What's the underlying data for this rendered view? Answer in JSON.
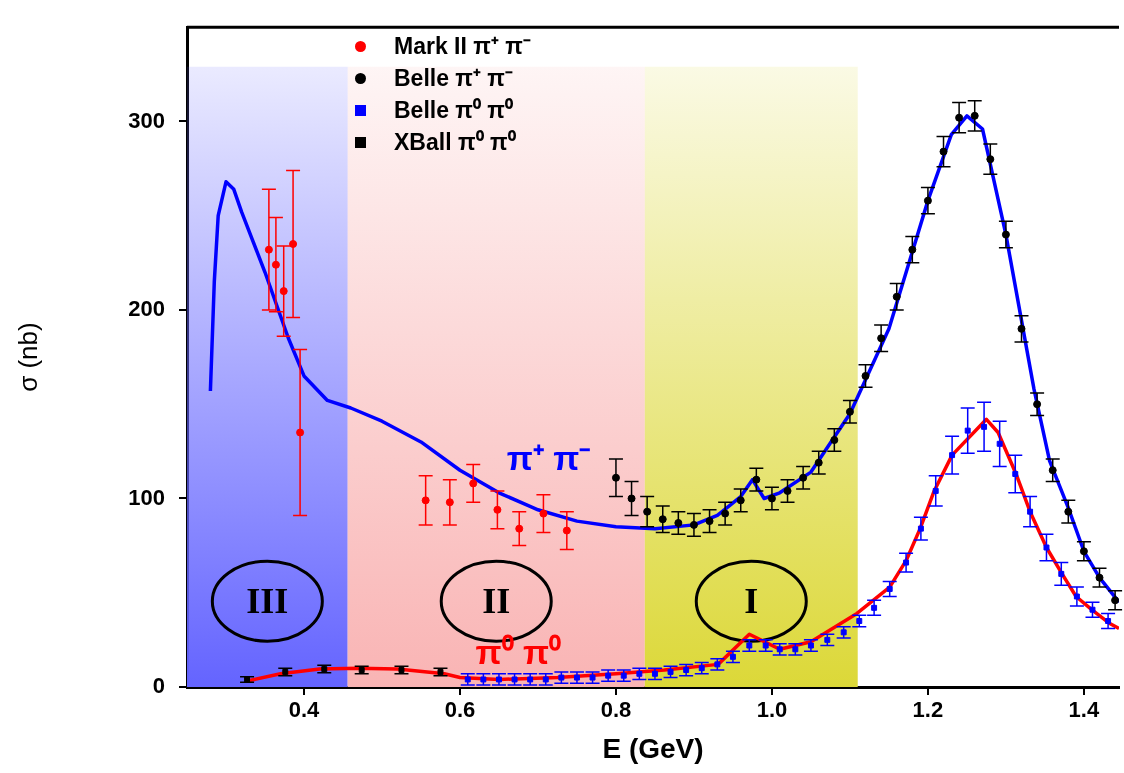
{
  "chart_data": {
    "type": "scatter",
    "xlabel": "E (GeV)",
    "ylabel": "σ (nb)",
    "xlim": [
      0.25,
      1.445
    ],
    "ylim": [
      0,
      350
    ],
    "xticks": [
      0.4,
      0.6,
      0.8,
      {
        "value": 1.0,
        "label": "1.0"
      },
      1.2,
      1.4
    ],
    "yticks": [
      0,
      100,
      200,
      300
    ],
    "legend": "top",
    "bands": [
      {
        "axis": "x",
        "from": 0.25,
        "to": 0.456,
        "label": "III",
        "color": "#6464ff"
      },
      {
        "axis": "x",
        "from": 0.456,
        "to": 0.837,
        "label": "II",
        "color": "#f9b4b4"
      },
      {
        "axis": "x",
        "from": 0.837,
        "to": 1.11,
        "label": "I",
        "color": "#dcd838"
      }
    ],
    "series": [
      {
        "name": "π⁺ π⁻",
        "type": "line",
        "marker": "none",
        "color": "#0000ff",
        "x": [
          0.28,
          0.285,
          0.29,
          0.3,
          0.31,
          0.32,
          0.35,
          0.38,
          0.4,
          0.43,
          0.46,
          0.5,
          0.55,
          0.6,
          0.65,
          0.7,
          0.75,
          0.8,
          0.85,
          0.9,
          0.93,
          0.96,
          0.975,
          0.99,
          1.01,
          1.05,
          1.1,
          1.15,
          1.2,
          1.23,
          1.25,
          1.27,
          1.3,
          1.336,
          1.356,
          1.38,
          1.4,
          1.42,
          1.445
        ],
        "values": [
          157,
          215,
          250,
          268,
          264,
          252,
          220,
          185,
          165,
          152,
          148,
          141,
          130,
          115,
          103,
          94,
          88,
          85,
          84,
          86,
          91,
          101,
          110,
          100,
          103,
          114,
          145,
          190,
          258,
          293,
          303,
          296,
          240,
          158,
          120,
          95,
          72,
          58,
          45
        ]
      },
      {
        "name": "π⁰ π⁰",
        "type": "line",
        "marker": "none",
        "color": "#ff0000",
        "x": [
          0.325,
          0.37,
          0.42,
          0.47,
          0.52,
          0.58,
          0.6,
          0.65,
          0.725,
          0.8,
          0.862,
          0.931,
          0.971,
          1.01,
          1.05,
          1.109,
          1.151,
          1.172,
          1.19,
          1.208,
          1.231,
          1.275,
          1.29,
          1.313,
          1.331,
          1.352,
          1.372,
          1.39,
          1.41,
          1.432,
          1.445
        ],
        "values": [
          3,
          7,
          9.5,
          10,
          9.5,
          7,
          5,
          4,
          5,
          7,
          9,
          12,
          28,
          20,
          24,
          39,
          53,
          67,
          84,
          104,
          123,
          142,
          135,
          113,
          93,
          74,
          60,
          48,
          41,
          34,
          31
        ]
      },
      {
        "name": "Mark II π⁺ π⁻",
        "type": "scatter",
        "marker": "circle",
        "color": "#ff0000",
        "x": [
          0.355,
          0.364,
          0.374,
          0.386,
          0.395,
          0.556,
          0.587,
          0.617,
          0.648,
          0.676,
          0.707,
          0.737
        ],
        "values": [
          232,
          224,
          210,
          235,
          135,
          99,
          98,
          108,
          94,
          84,
          92,
          83
        ],
        "errors": [
          32,
          25,
          24,
          39,
          44,
          13,
          12,
          10,
          10,
          9,
          10,
          10
        ]
      },
      {
        "name": "Belle π⁺ π⁻",
        "type": "scatter",
        "marker": "circle",
        "color": "#000000",
        "x": [
          0.8,
          0.82,
          0.84,
          0.86,
          0.88,
          0.9,
          0.92,
          0.94,
          0.96,
          0.98,
          1.0,
          1.02,
          1.04,
          1.06,
          1.08,
          1.1,
          1.12,
          1.14,
          1.16,
          1.18,
          1.2,
          1.22,
          1.24,
          1.26,
          1.28,
          1.3,
          1.32,
          1.34,
          1.36,
          1.38,
          1.4,
          1.42,
          1.44
        ],
        "values": [
          111,
          100,
          93,
          89,
          87,
          86,
          88,
          92,
          99,
          110,
          100,
          104,
          111,
          119,
          131,
          146,
          165,
          185,
          207,
          232,
          258,
          284,
          302,
          303,
          280,
          240,
          190,
          150,
          115,
          93,
          72,
          58,
          46
        ],
        "errors": [
          10,
          9,
          8,
          7,
          6,
          6,
          6,
          6,
          6,
          6,
          6,
          6,
          6,
          6,
          6,
          6,
          6,
          7,
          7,
          7,
          7,
          8,
          8,
          8,
          8,
          7,
          7,
          6,
          6,
          6,
          5,
          5,
          5
        ]
      },
      {
        "name": "Belle π⁰ π⁰",
        "type": "scatter",
        "marker": "square",
        "color": "#0000ff",
        "x": [
          0.61,
          0.63,
          0.65,
          0.67,
          0.69,
          0.71,
          0.73,
          0.75,
          0.77,
          0.79,
          0.81,
          0.83,
          0.85,
          0.87,
          0.89,
          0.91,
          0.93,
          0.95,
          0.971,
          0.992,
          1.01,
          1.03,
          1.05,
          1.071,
          1.092,
          1.112,
          1.131,
          1.151,
          1.172,
          1.191,
          1.21,
          1.231,
          1.251,
          1.272,
          1.292,
          1.312,
          1.331,
          1.352,
          1.371,
          1.391,
          1.411,
          1.431
        ],
        "values": [
          4,
          4,
          4,
          4,
          4,
          4,
          5,
          5,
          5,
          6,
          6,
          7,
          7,
          8,
          9,
          10,
          12,
          16,
          22,
          22,
          20,
          20,
          22,
          25,
          29,
          35,
          42,
          52,
          66,
          84,
          104,
          123,
          136,
          138,
          129,
          113,
          93,
          74,
          60,
          48,
          41,
          35
        ],
        "errors": [
          3,
          3,
          3,
          3,
          3,
          3,
          3,
          3,
          3,
          3,
          3,
          3,
          3,
          3,
          3,
          3,
          3,
          3,
          3,
          3,
          3,
          3,
          3,
          3,
          3,
          3,
          4,
          4,
          5,
          6,
          8,
          10,
          12,
          13,
          12,
          10,
          8,
          7,
          6,
          5,
          4,
          4
        ]
      },
      {
        "name": "XBall π⁰ π⁰",
        "type": "scatter",
        "marker": "square",
        "color": "#000000",
        "x": [
          0.327,
          0.376,
          0.426,
          0.474,
          0.525,
          0.575
        ],
        "values": [
          4,
          8,
          9.5,
          9,
          9,
          8
        ],
        "errors": [
          1.5,
          2,
          2,
          2,
          2,
          2
        ]
      }
    ]
  }
}
